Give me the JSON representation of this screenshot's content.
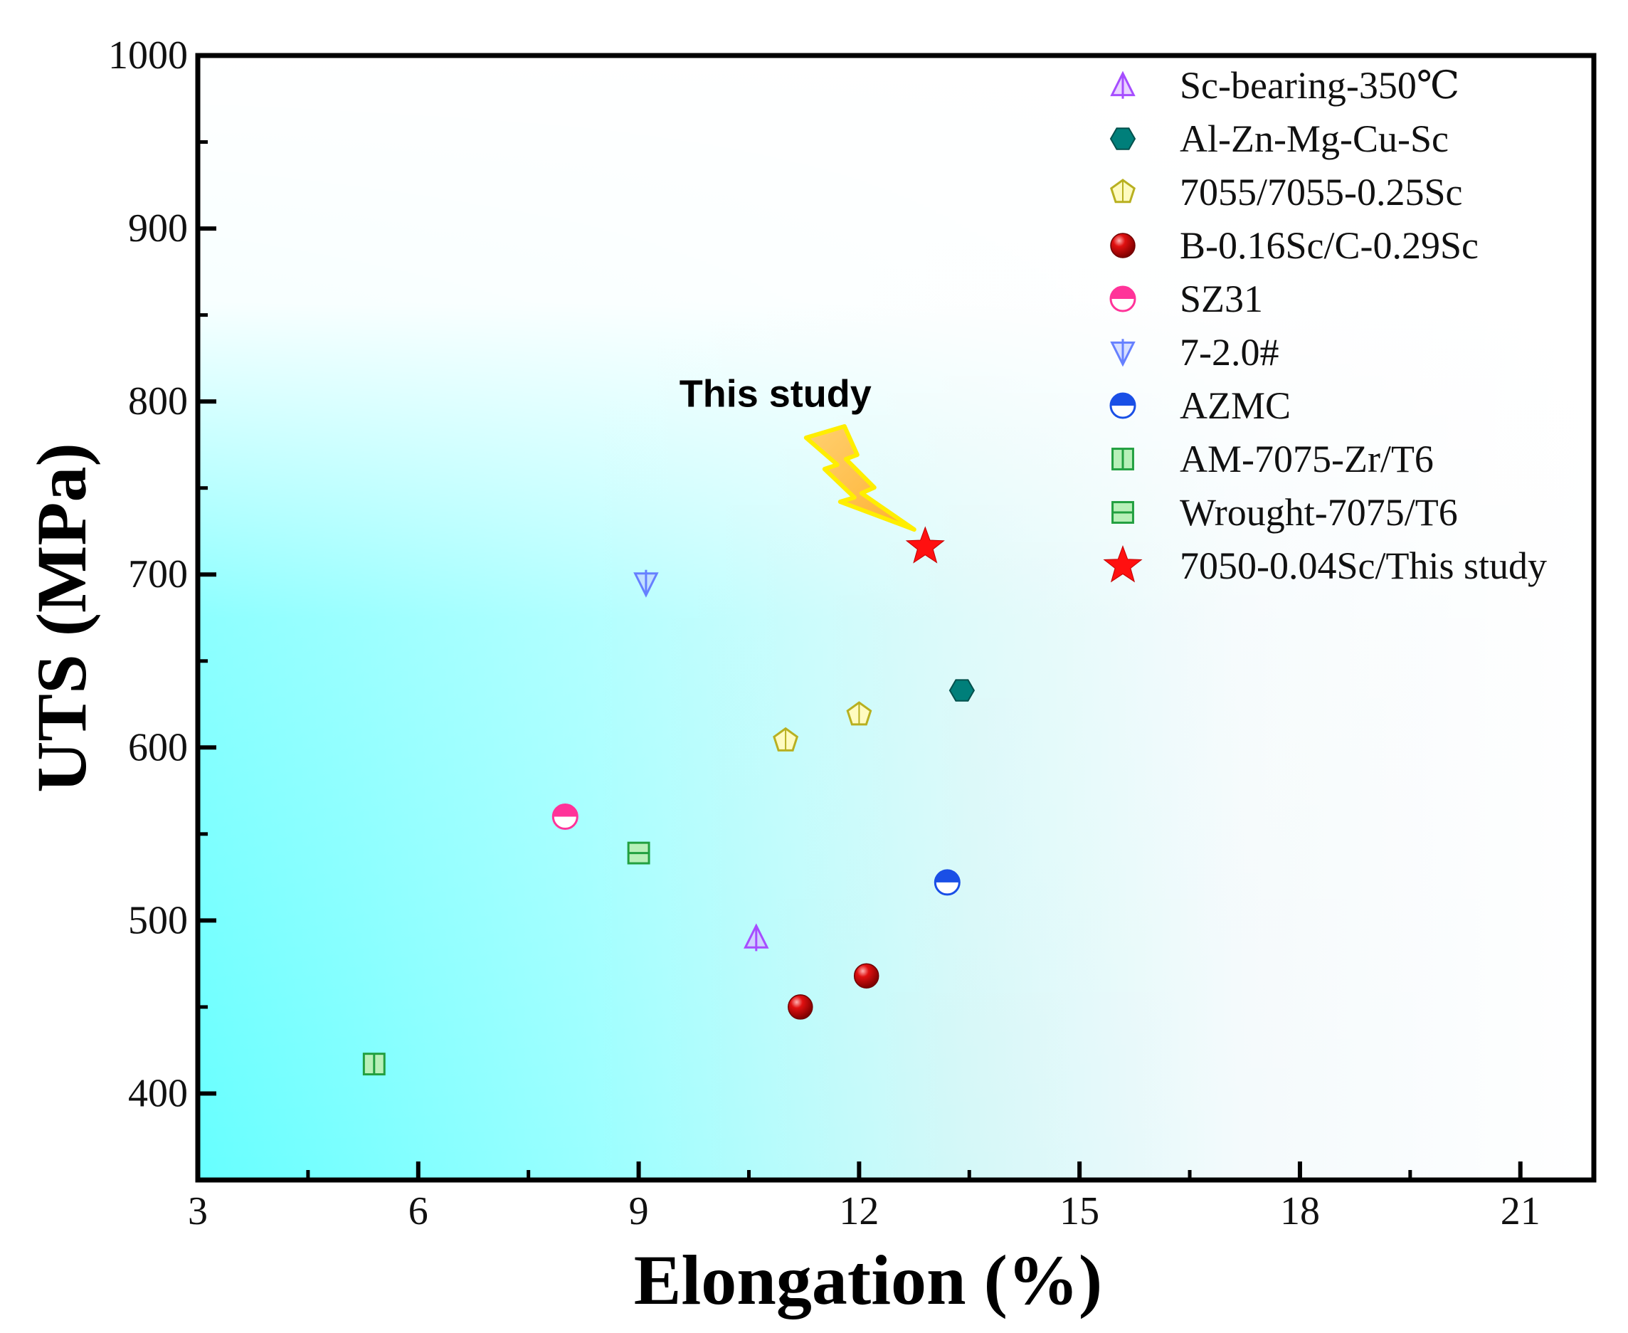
{
  "chart_data": {
    "type": "scatter",
    "title": "",
    "xlabel": "Elongation (%)",
    "ylabel": "UTS (MPa)",
    "xlim": [
      3,
      22
    ],
    "ylim": [
      350,
      1000
    ],
    "xticks": [
      3,
      6,
      9,
      12,
      15,
      18,
      21
    ],
    "yticks": [
      400,
      500,
      600,
      700,
      800,
      900,
      1000
    ],
    "grid": false,
    "legend_position": "top-right",
    "series": [
      {
        "name": "Sc-bearing-350℃",
        "marker": "triangle-up",
        "color": "#a64dff",
        "points": [
          {
            "x": 10.6,
            "y": 490
          }
        ]
      },
      {
        "name": "Al-Zn-Mg-Cu-Sc",
        "marker": "hexagon",
        "color": "#007f7a",
        "points": [
          {
            "x": 13.4,
            "y": 633
          }
        ]
      },
      {
        "name": "7055/7055-0.25Sc",
        "marker": "pentagon",
        "color": "#b8b020",
        "points": [
          {
            "x": 11.0,
            "y": 604
          },
          {
            "x": 12.0,
            "y": 619
          }
        ]
      },
      {
        "name": "B-0.16Sc/C-0.29Sc",
        "marker": "sphere",
        "color": "#cc0000",
        "points": [
          {
            "x": 11.2,
            "y": 450
          },
          {
            "x": 12.1,
            "y": 468
          }
        ]
      },
      {
        "name": "SZ31",
        "marker": "half-circle",
        "color": "#ff3399",
        "points": [
          {
            "x": 8.0,
            "y": 560
          }
        ]
      },
      {
        "name": "7-2.0#",
        "marker": "triangle-down",
        "color": "#6680ff",
        "points": [
          {
            "x": 9.1,
            "y": 695
          }
        ]
      },
      {
        "name": "AZMC",
        "marker": "half-circle",
        "color": "#1a4fe6",
        "points": [
          {
            "x": 13.2,
            "y": 522
          }
        ]
      },
      {
        "name": "AM-7075-Zr/T6",
        "marker": "square-vline",
        "color": "#22a040",
        "points": [
          {
            "x": 5.4,
            "y": 417
          }
        ]
      },
      {
        "name": "Wrought-7075/T6",
        "marker": "square-hline",
        "color": "#22a040",
        "points": [
          {
            "x": 9.0,
            "y": 539
          }
        ]
      },
      {
        "name": "7050-0.04Sc/This study",
        "marker": "star",
        "color": "#ff1010",
        "points": [
          {
            "x": 12.9,
            "y": 716
          }
        ]
      }
    ],
    "annotations": [
      {
        "text": "This study",
        "x": 11.2,
        "y": 797,
        "arrow_to": {
          "x": 12.75,
          "y": 726
        }
      }
    ]
  }
}
